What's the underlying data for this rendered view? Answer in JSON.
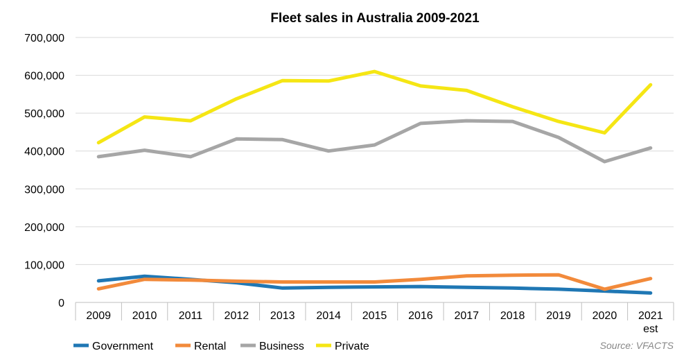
{
  "chart_data": {
    "type": "line",
    "title": "Fleet sales in Australia 2009-2021",
    "categories": [
      "2009",
      "2010",
      "2011",
      "2012",
      "2013",
      "2014",
      "2015",
      "2016",
      "2017",
      "2018",
      "2019",
      "2020",
      "2021\nest"
    ],
    "ylim": [
      0,
      700000
    ],
    "yticks": [
      "0",
      "100,000",
      "200,000",
      "300,000",
      "400,000",
      "500,000",
      "600,000",
      "700,000"
    ],
    "xlabel": "",
    "ylabel": "",
    "grid": "horizontal",
    "legend_position": "bottom-left",
    "series": [
      {
        "name": "Government",
        "color": "#1f77b4",
        "values": [
          57000,
          69000,
          61000,
          52000,
          38000,
          40000,
          41000,
          42000,
          40000,
          38000,
          35000,
          30000,
          25000
        ]
      },
      {
        "name": "Rental",
        "color": "#f28a3b",
        "values": [
          36000,
          61000,
          59000,
          56000,
          54000,
          54000,
          54000,
          61000,
          70000,
          72000,
          73000,
          35000,
          63000
        ]
      },
      {
        "name": "Business",
        "color": "#a6a6a6",
        "values": [
          385000,
          402000,
          385000,
          432000,
          430000,
          400000,
          416000,
          473000,
          480000,
          478000,
          436000,
          372000,
          408000
        ]
      },
      {
        "name": "Private",
        "color": "#f5e614",
        "values": [
          422000,
          490000,
          480000,
          538000,
          586000,
          585000,
          610000,
          572000,
          560000,
          517000,
          478000,
          448000,
          575000
        ]
      }
    ],
    "source": "Source: VFACTS"
  }
}
